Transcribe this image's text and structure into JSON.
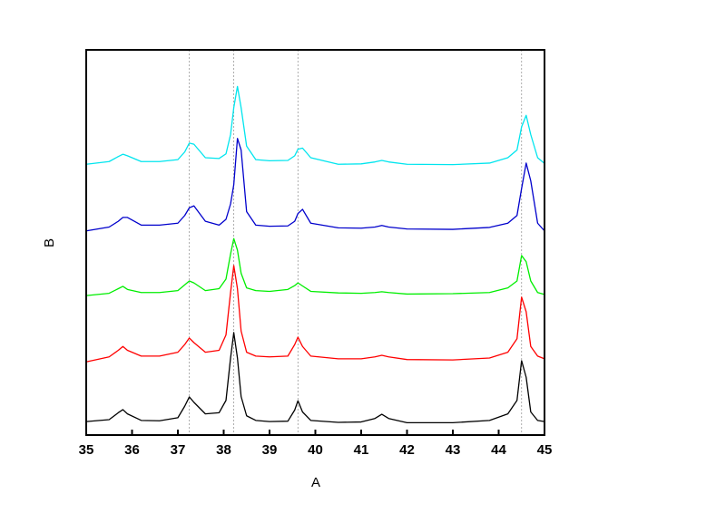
{
  "chart_data": {
    "type": "line",
    "x_label": "A",
    "y_label": "B",
    "x": [
      35,
      35.5,
      35.7,
      35.8,
      35.9,
      36.2,
      36.6,
      37.0,
      37.15,
      37.25,
      37.35,
      37.6,
      37.9,
      38.05,
      38.15,
      38.22,
      38.3,
      38.38,
      38.5,
      38.7,
      39.0,
      39.4,
      39.55,
      39.62,
      39.72,
      39.9,
      40.5,
      41.0,
      41.3,
      41.45,
      41.6,
      42.0,
      43.0,
      43.8,
      44.2,
      44.4,
      44.5,
      44.6,
      44.7,
      44.85,
      45.0
    ],
    "series": [
      {
        "color": "#000000",
        "values": [
          3.5,
          4,
          5.8,
          6.6,
          5.5,
          3.8,
          3.7,
          4.5,
          7.5,
          9.9,
          8.5,
          5.5,
          5.8,
          9,
          20,
          26.6,
          20,
          10,
          5,
          3.8,
          3.5,
          3.6,
          6.5,
          8.9,
          6,
          3.8,
          3.3,
          3.4,
          4.3,
          5.4,
          4.3,
          3.2,
          3.2,
          3.8,
          5.5,
          9,
          19.3,
          15,
          6,
          3.8,
          3.5
        ]
      },
      {
        "color": "#ff0000",
        "values": [
          19,
          20.3,
          22,
          23,
          22,
          20.5,
          20.5,
          21.5,
          23.5,
          25.2,
          24,
          21.5,
          22,
          26,
          37,
          44,
          38,
          27,
          21.5,
          20.5,
          20.3,
          20.5,
          23.5,
          25.4,
          23,
          20.5,
          19.8,
          19.8,
          20.3,
          20.7,
          20.3,
          19.6,
          19.5,
          20,
          21.5,
          25,
          35.8,
          32,
          23,
          20.5,
          19.8
        ]
      },
      {
        "color": "#00ee00",
        "values": [
          36.2,
          36.8,
          38,
          38.6,
          37.8,
          37,
          37,
          37.5,
          39,
          40,
          39.5,
          37.5,
          38,
          40.5,
          47,
          51,
          48,
          42,
          38.2,
          37.5,
          37.3,
          37.8,
          38.8,
          39.5,
          38.7,
          37.3,
          36.9,
          36.8,
          37,
          37.2,
          37,
          36.6,
          36.7,
          37,
          38.2,
          40,
          46.6,
          45,
          40,
          37,
          36.5
        ]
      },
      {
        "color": "#0000cc",
        "values": [
          53,
          54,
          55.5,
          56.5,
          56.5,
          54.5,
          54.5,
          55,
          57,
          59,
          59.5,
          55.5,
          54.5,
          56,
          60,
          65,
          77,
          74,
          58,
          54.5,
          54.2,
          54.3,
          55.5,
          57.5,
          58.6,
          55,
          53.8,
          53.7,
          54,
          54.4,
          54,
          53.5,
          53.4,
          53.9,
          55,
          57,
          64,
          70.6,
          66,
          55,
          53
        ]
      },
      {
        "color": "#00e5ee",
        "values": [
          70.3,
          71,
          72.3,
          72.9,
          72.5,
          71,
          71,
          71.5,
          73.5,
          75.8,
          75.5,
          72,
          71.8,
          73,
          78,
          85,
          90.5,
          85,
          75,
          71.5,
          71.2,
          71.3,
          72.5,
          74.2,
          74.5,
          72,
          70.3,
          70.4,
          70.9,
          71.3,
          70.9,
          70.3,
          70.2,
          70.6,
          72,
          74,
          80,
          83,
          78,
          72,
          70.5
        ]
      }
    ],
    "reference_lines": [
      37.25,
      38.22,
      39.62,
      44.5
    ],
    "xlim": [
      35,
      45
    ],
    "xticks": [
      35,
      36,
      37,
      38,
      39,
      40,
      41,
      42,
      43,
      44,
      45
    ],
    "ylim": [
      0,
      100
    ]
  }
}
